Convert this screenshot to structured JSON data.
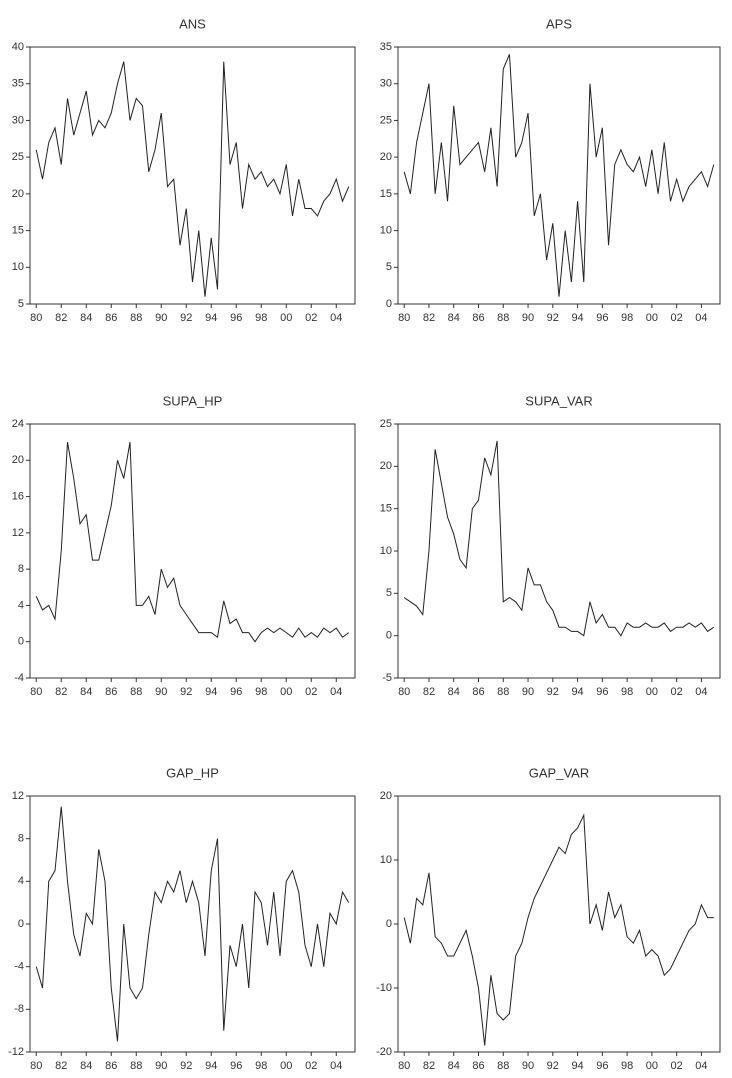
{
  "chart_data": [
    {
      "type": "line",
      "title": "ANS",
      "color": "#222222",
      "x": [
        1980,
        1980.5,
        1981,
        1981.5,
        1982,
        1982.5,
        1983,
        1983.5,
        1984,
        1984.5,
        1985,
        1985.5,
        1986,
        1986.5,
        1987,
        1987.5,
        1988,
        1988.5,
        1989,
        1989.5,
        1990,
        1990.5,
        1991,
        1991.5,
        1992,
        1992.5,
        1993,
        1993.5,
        1994,
        1994.5,
        1995,
        1995.5,
        1996,
        1996.5,
        1997,
        1997.5,
        1998,
        1998.5,
        1999,
        1999.5,
        2000,
        2000.5,
        2001,
        2001.5,
        2002,
        2002.5,
        2003,
        2003.5,
        2004,
        2004.5,
        2005
      ],
      "values": [
        26,
        22,
        27,
        29,
        24,
        33,
        28,
        31,
        34,
        28,
        30,
        29,
        31,
        35,
        38,
        30,
        33,
        32,
        23,
        26,
        31,
        21,
        22,
        13,
        18,
        8,
        15,
        6,
        14,
        7,
        38,
        24,
        27,
        18,
        24,
        22,
        23,
        21,
        22,
        20,
        24,
        17,
        22,
        18,
        18,
        17,
        19,
        20,
        22,
        19,
        21
      ],
      "xlim": [
        1979.5,
        2005.5
      ],
      "xticks": [
        {
          "value": 1980,
          "label": "80"
        },
        {
          "value": 1982,
          "label": "82"
        },
        {
          "value": 1984,
          "label": "84"
        },
        {
          "value": 1986,
          "label": "86"
        },
        {
          "value": 1988,
          "label": "88"
        },
        {
          "value": 1990,
          "label": "90"
        },
        {
          "value": 1992,
          "label": "92"
        },
        {
          "value": 1994,
          "label": "94"
        },
        {
          "value": 1996,
          "label": "96"
        },
        {
          "value": 1998,
          "label": "98"
        },
        {
          "value": 2000,
          "label": "00"
        },
        {
          "value": 2002,
          "label": "02"
        },
        {
          "value": 2004,
          "label": "04"
        }
      ],
      "ylim": [
        5,
        40
      ],
      "yticks": [
        5,
        10,
        15,
        20,
        25,
        30,
        35,
        40
      ]
    },
    {
      "type": "line",
      "title": "APS",
      "color": "#222222",
      "x": [
        1980,
        1980.5,
        1981,
        1981.5,
        1982,
        1982.5,
        1983,
        1983.5,
        1984,
        1984.5,
        1985,
        1985.5,
        1986,
        1986.5,
        1987,
        1987.5,
        1988,
        1988.5,
        1989,
        1989.5,
        1990,
        1990.5,
        1991,
        1991.5,
        1992,
        1992.5,
        1993,
        1993.5,
        1994,
        1994.5,
        1995,
        1995.5,
        1996,
        1996.5,
        1997,
        1997.5,
        1998,
        1998.5,
        1999,
        1999.5,
        2000,
        2000.5,
        2001,
        2001.5,
        2002,
        2002.5,
        2003,
        2003.5,
        2004,
        2004.5,
        2005
      ],
      "values": [
        18,
        15,
        22,
        26,
        30,
        15,
        22,
        14,
        27,
        19,
        20,
        21,
        22,
        18,
        24,
        16,
        32,
        34,
        20,
        22,
        26,
        12,
        15,
        6,
        11,
        1,
        10,
        3,
        14,
        3,
        30,
        20,
        24,
        8,
        19,
        21,
        19,
        18,
        20,
        16,
        21,
        15,
        22,
        14,
        17,
        14,
        16,
        17,
        18,
        16,
        19
      ],
      "xlim": [
        1979.5,
        2005.5
      ],
      "xticks": [
        {
          "value": 1980,
          "label": "80"
        },
        {
          "value": 1982,
          "label": "82"
        },
        {
          "value": 1984,
          "label": "84"
        },
        {
          "value": 1986,
          "label": "86"
        },
        {
          "value": 1988,
          "label": "88"
        },
        {
          "value": 1990,
          "label": "90"
        },
        {
          "value": 1992,
          "label": "92"
        },
        {
          "value": 1994,
          "label": "94"
        },
        {
          "value": 1996,
          "label": "96"
        },
        {
          "value": 1998,
          "label": "98"
        },
        {
          "value": 2000,
          "label": "00"
        },
        {
          "value": 2002,
          "label": "02"
        },
        {
          "value": 2004,
          "label": "04"
        }
      ],
      "ylim": [
        0,
        35
      ],
      "yticks": [
        0,
        5,
        10,
        15,
        20,
        25,
        30,
        35
      ]
    },
    {
      "type": "line",
      "title": "SUPA_HP",
      "color": "#222222",
      "x": [
        1980,
        1980.5,
        1981,
        1981.5,
        1982,
        1982.5,
        1983,
        1983.5,
        1984,
        1984.5,
        1985,
        1985.5,
        1986,
        1986.5,
        1987,
        1987.5,
        1988,
        1988.5,
        1989,
        1989.5,
        1990,
        1990.5,
        1991,
        1991.5,
        1992,
        1992.5,
        1993,
        1993.5,
        1994,
        1994.5,
        1995,
        1995.5,
        1996,
        1996.5,
        1997,
        1997.5,
        1998,
        1998.5,
        1999,
        1999.5,
        2000,
        2000.5,
        2001,
        2001.5,
        2002,
        2002.5,
        2003,
        2003.5,
        2004,
        2004.5,
        2005
      ],
      "values": [
        5,
        3.5,
        4,
        2.5,
        10,
        22,
        18,
        13,
        14,
        9,
        9,
        12,
        15,
        20,
        18,
        22,
        4,
        4,
        5,
        3,
        8,
        6,
        7,
        4,
        3,
        2,
        1,
        1,
        1,
        0.5,
        4.5,
        2,
        2.5,
        1,
        1,
        0,
        1,
        1.5,
        1,
        1.5,
        1,
        0.5,
        1.5,
        0.5,
        1,
        0.5,
        1.5,
        1,
        1.5,
        0.5,
        1
      ],
      "xlim": [
        1979.5,
        2005.5
      ],
      "xticks": [
        {
          "value": 1980,
          "label": "80"
        },
        {
          "value": 1982,
          "label": "82"
        },
        {
          "value": 1984,
          "label": "84"
        },
        {
          "value": 1986,
          "label": "86"
        },
        {
          "value": 1988,
          "label": "88"
        },
        {
          "value": 1990,
          "label": "90"
        },
        {
          "value": 1992,
          "label": "92"
        },
        {
          "value": 1994,
          "label": "94"
        },
        {
          "value": 1996,
          "label": "96"
        },
        {
          "value": 1998,
          "label": "98"
        },
        {
          "value": 2000,
          "label": "00"
        },
        {
          "value": 2002,
          "label": "02"
        },
        {
          "value": 2004,
          "label": "04"
        }
      ],
      "ylim": [
        -4,
        24
      ],
      "yticks": [
        -4,
        0,
        4,
        8,
        12,
        16,
        20,
        24
      ]
    },
    {
      "type": "line",
      "title": "SUPA_VAR",
      "color": "#222222",
      "x": [
        1980,
        1980.5,
        1981,
        1981.5,
        1982,
        1982.5,
        1983,
        1983.5,
        1984,
        1984.5,
        1985,
        1985.5,
        1986,
        1986.5,
        1987,
        1987.5,
        1988,
        1988.5,
        1989,
        1989.5,
        1990,
        1990.5,
        1991,
        1991.5,
        1992,
        1992.5,
        1993,
        1993.5,
        1994,
        1994.5,
        1995,
        1995.5,
        1996,
        1996.5,
        1997,
        1997.5,
        1998,
        1998.5,
        1999,
        1999.5,
        2000,
        2000.5,
        2001,
        2001.5,
        2002,
        2002.5,
        2003,
        2003.5,
        2004,
        2004.5,
        2005
      ],
      "values": [
        4.5,
        4,
        3.5,
        2.5,
        10,
        22,
        18,
        14,
        12,
        9,
        8,
        15,
        16,
        21,
        19,
        23,
        4,
        4.5,
        4,
        3,
        8,
        6,
        6,
        4,
        3,
        1,
        1,
        0.5,
        0.5,
        0,
        4,
        1.5,
        2.5,
        1,
        1,
        0,
        1.5,
        1,
        1,
        1.5,
        1,
        1,
        1.5,
        0.5,
        1,
        1,
        1.5,
        1,
        1.5,
        0.5,
        1
      ],
      "xlim": [
        1979.5,
        2005.5
      ],
      "xticks": [
        {
          "value": 1980,
          "label": "80"
        },
        {
          "value": 1982,
          "label": "82"
        },
        {
          "value": 1984,
          "label": "84"
        },
        {
          "value": 1986,
          "label": "86"
        },
        {
          "value": 1988,
          "label": "88"
        },
        {
          "value": 1990,
          "label": "90"
        },
        {
          "value": 1992,
          "label": "92"
        },
        {
          "value": 1994,
          "label": "94"
        },
        {
          "value": 1996,
          "label": "96"
        },
        {
          "value": 1998,
          "label": "98"
        },
        {
          "value": 2000,
          "label": "00"
        },
        {
          "value": 2002,
          "label": "02"
        },
        {
          "value": 2004,
          "label": "04"
        }
      ],
      "ylim": [
        -5,
        25
      ],
      "yticks": [
        -5,
        0,
        5,
        10,
        15,
        20,
        25
      ]
    },
    {
      "type": "line",
      "title": "GAP_HP",
      "color": "#222222",
      "x": [
        1980,
        1980.5,
        1981,
        1981.5,
        1982,
        1982.5,
        1983,
        1983.5,
        1984,
        1984.5,
        1985,
        1985.5,
        1986,
        1986.5,
        1987,
        1987.5,
        1988,
        1988.5,
        1989,
        1989.5,
        1990,
        1990.5,
        1991,
        1991.5,
        1992,
        1992.5,
        1993,
        1993.5,
        1994,
        1994.5,
        1995,
        1995.5,
        1996,
        1996.5,
        1997,
        1997.5,
        1998,
        1998.5,
        1999,
        1999.5,
        2000,
        2000.5,
        2001,
        2001.5,
        2002,
        2002.5,
        2003,
        2003.5,
        2004,
        2004.5,
        2005
      ],
      "values": [
        -4,
        -6,
        4,
        5,
        11,
        4,
        -1,
        -3,
        1,
        0,
        7,
        4,
        -6,
        -11,
        0,
        -6,
        -7,
        -6,
        -1,
        3,
        2,
        4,
        3,
        5,
        2,
        4,
        2,
        -3,
        5,
        8,
        -10,
        -2,
        -4,
        0,
        -6,
        3,
        2,
        -2,
        3,
        -3,
        4,
        5,
        3,
        -2,
        -4,
        0,
        -4,
        1,
        0,
        3,
        2
      ],
      "xlim": [
        1979.5,
        2005.5
      ],
      "xticks": [
        {
          "value": 1980,
          "label": "80"
        },
        {
          "value": 1982,
          "label": "82"
        },
        {
          "value": 1984,
          "label": "84"
        },
        {
          "value": 1986,
          "label": "86"
        },
        {
          "value": 1988,
          "label": "88"
        },
        {
          "value": 1990,
          "label": "90"
        },
        {
          "value": 1992,
          "label": "92"
        },
        {
          "value": 1994,
          "label": "94"
        },
        {
          "value": 1996,
          "label": "96"
        },
        {
          "value": 1998,
          "label": "98"
        },
        {
          "value": 2000,
          "label": "00"
        },
        {
          "value": 2002,
          "label": "02"
        },
        {
          "value": 2004,
          "label": "04"
        }
      ],
      "ylim": [
        -12,
        12
      ],
      "yticks": [
        -12,
        -8,
        -4,
        0,
        4,
        8,
        12
      ]
    },
    {
      "type": "line",
      "title": "GAP_VAR",
      "color": "#222222",
      "x": [
        1980,
        1980.5,
        1981,
        1981.5,
        1982,
        1982.5,
        1983,
        1983.5,
        1984,
        1984.5,
        1985,
        1985.5,
        1986,
        1986.5,
        1987,
        1987.5,
        1988,
        1988.5,
        1989,
        1989.5,
        1990,
        1990.5,
        1991,
        1991.5,
        1992,
        1992.5,
        1993,
        1993.5,
        1994,
        1994.5,
        1995,
        1995.5,
        1996,
        1996.5,
        1997,
        1997.5,
        1998,
        1998.5,
        1999,
        1999.5,
        2000,
        2000.5,
        2001,
        2001.5,
        2002,
        2002.5,
        2003,
        2003.5,
        2004,
        2004.5,
        2005
      ],
      "values": [
        1,
        -3,
        4,
        3,
        8,
        -2,
        -3,
        -5,
        -5,
        -3,
        -1,
        -5,
        -10,
        -19,
        -8,
        -14,
        -15,
        -14,
        -5,
        -3,
        1,
        4,
        6,
        8,
        10,
        12,
        11,
        14,
        15,
        17,
        0,
        3,
        -1,
        5,
        1,
        3,
        -2,
        -3,
        -1,
        -5,
        -4,
        -5,
        -8,
        -7,
        -5,
        -3,
        -1,
        0,
        3,
        1,
        1
      ],
      "xlim": [
        1979.5,
        2005.5
      ],
      "xticks": [
        {
          "value": 1980,
          "label": "80"
        },
        {
          "value": 1982,
          "label": "82"
        },
        {
          "value": 1984,
          "label": "84"
        },
        {
          "value": 1986,
          "label": "86"
        },
        {
          "value": 1988,
          "label": "88"
        },
        {
          "value": 1990,
          "label": "90"
        },
        {
          "value": 1992,
          "label": "92"
        },
        {
          "value": 1994,
          "label": "94"
        },
        {
          "value": 1996,
          "label": "96"
        },
        {
          "value": 1998,
          "label": "98"
        },
        {
          "value": 2000,
          "label": "00"
        },
        {
          "value": 2002,
          "label": "02"
        },
        {
          "value": 2004,
          "label": "04"
        }
      ],
      "ylim": [
        -20,
        20
      ],
      "yticks": [
        -20,
        -10,
        0,
        10,
        20
      ]
    }
  ]
}
